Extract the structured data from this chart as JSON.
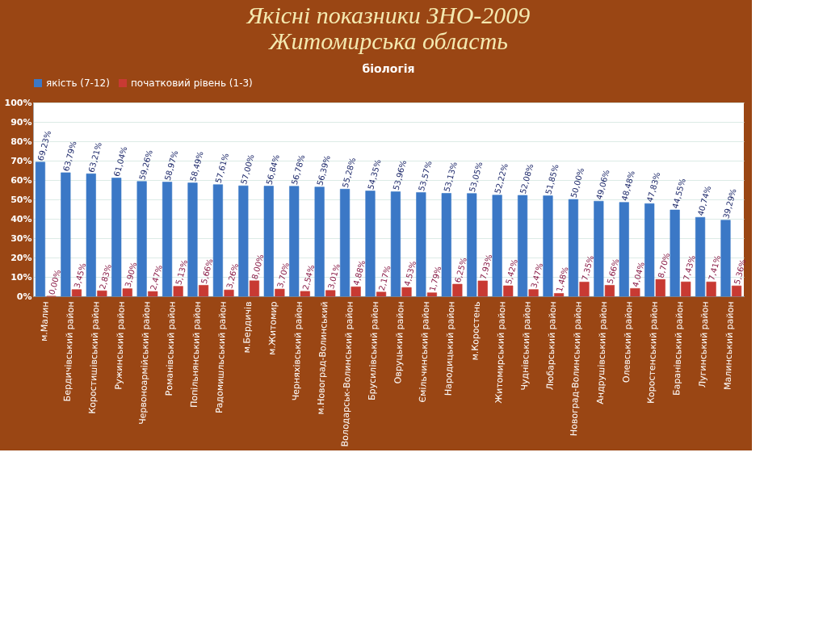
{
  "chart_data": {
    "type": "bar",
    "title": "Якісні показники ЗНО-2009\nЖитомирська область",
    "subtitle": "біологія",
    "categories": [
      "м.Малин",
      "Бердичівський район",
      "Коростишівський район",
      "Ружинський район",
      "Червоноармійський район",
      "Романівський район",
      "Попільнянський район",
      "Радомишльський район",
      "м.Бердичів",
      "м.Житомир",
      "Черняхівський район",
      "м.Новоград-Волинський",
      "Володарськ-Волинський район",
      "Брусилівський район",
      "Овруцький район",
      "Ємільчинський район",
      "Народицький район",
      "м.Коростень",
      "Житомирський район",
      "Чуднівський район",
      "Любарський район",
      "Новоград-Волинський район",
      "Андрушівський район",
      "Олевський район",
      "Коростенський район",
      "Баранівський район",
      "Лугинський район",
      "Малинський район"
    ],
    "series": [
      {
        "name": "якість (7-12)",
        "color": "#3b78c6",
        "values": [
          69.23,
          63.79,
          63.21,
          61.04,
          59.26,
          58.97,
          58.49,
          57.61,
          57.0,
          56.84,
          56.78,
          56.39,
          55.28,
          54.35,
          53.96,
          53.57,
          53.13,
          53.05,
          52.22,
          52.08,
          51.85,
          50.0,
          49.06,
          48.48,
          47.83,
          44.55,
          40.74,
          39.29
        ],
        "value_labels": [
          "69,23%",
          "63,79%",
          "63,21%",
          "61,04%",
          "59,26%",
          "58,97%",
          "58,49%",
          "57,61%",
          "57,00%",
          "56,84%",
          "56,78%",
          "56,39%",
          "55,28%",
          "54,35%",
          "53,96%",
          "53,57%",
          "53,13%",
          "53,05%",
          "52,22%",
          "52,08%",
          "51,85%",
          "50,00%",
          "49,06%",
          "48,48%",
          "47,83%",
          "44,55%",
          "40,74%",
          "39,29%"
        ]
      },
      {
        "name": "початковий рівень (1-3)",
        "color": "#c83a33",
        "values": [
          0.0,
          3.45,
          2.83,
          3.9,
          2.47,
          5.13,
          5.66,
          3.26,
          8.0,
          3.7,
          2.54,
          3.01,
          4.88,
          2.17,
          4.53,
          1.79,
          6.25,
          7.93,
          5.42,
          3.47,
          1.48,
          7.35,
          5.66,
          4.04,
          8.7,
          7.43,
          7.41,
          5.36
        ],
        "value_labels": [
          "0,00%",
          "3,45%",
          "2,83%",
          "3,90%",
          "2,47%",
          "5,13%",
          "5,66%",
          "3,26%",
          "8,00%",
          "3,70%",
          "2,54%",
          "3,01%",
          "4,88%",
          "2,17%",
          "4,53%",
          "1,79%",
          "6,25%",
          "7,93%",
          "5,42%",
          "3,47%",
          "1,48%",
          "7,35%",
          "5,66%",
          "4,04%",
          "8,70%",
          "7,43%",
          "7,41%",
          "5,36%"
        ]
      }
    ],
    "ylim": [
      0,
      100
    ],
    "yticks": [
      {
        "value": 0,
        "label": "0%"
      },
      {
        "value": 10,
        "label": "10%"
      },
      {
        "value": 20,
        "label": "20%"
      },
      {
        "value": 30,
        "label": "30%"
      },
      {
        "value": 40,
        "label": "40%"
      },
      {
        "value": 50,
        "label": "50%"
      },
      {
        "value": 60,
        "label": "60%"
      },
      {
        "value": 70,
        "label": "70%"
      },
      {
        "value": 80,
        "label": "80%"
      },
      {
        "value": 90,
        "label": "90%"
      },
      {
        "value": 100,
        "label": "100%"
      }
    ],
    "grid": "y",
    "legend": "top"
  }
}
